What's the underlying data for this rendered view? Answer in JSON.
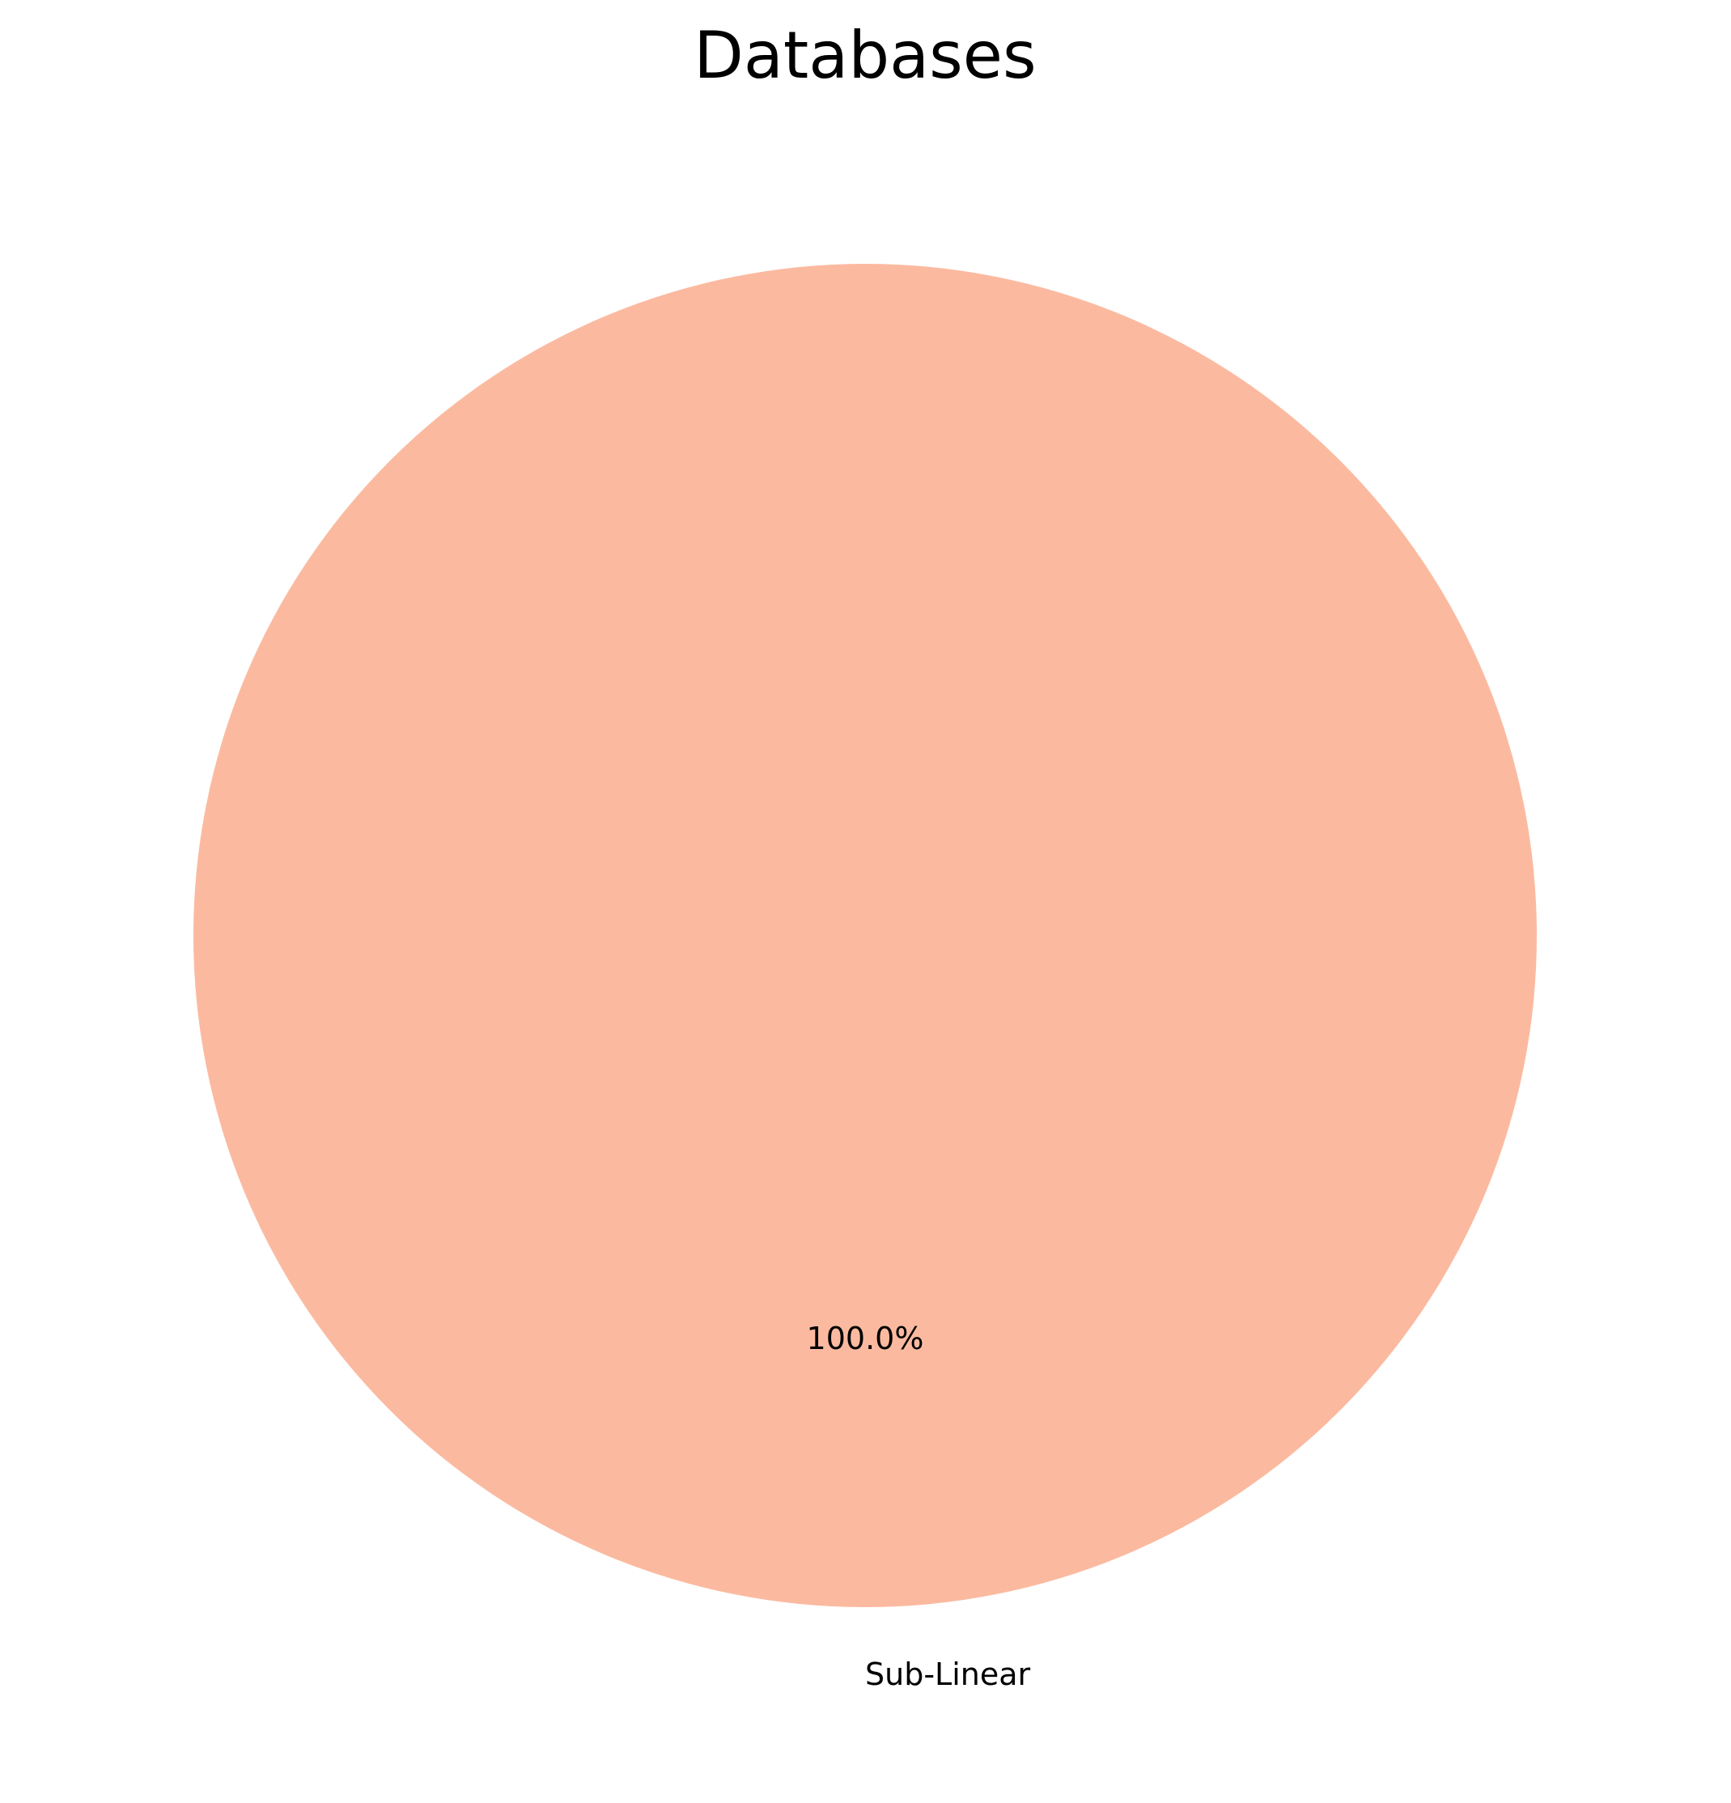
{
  "chart_data": {
    "type": "pie",
    "title": "Databases",
    "slices": [
      {
        "label": "Sub-Linear",
        "value": 100.0,
        "pct_label": "100.0%",
        "color": "#fbbaa0"
      }
    ],
    "legend": "none"
  }
}
